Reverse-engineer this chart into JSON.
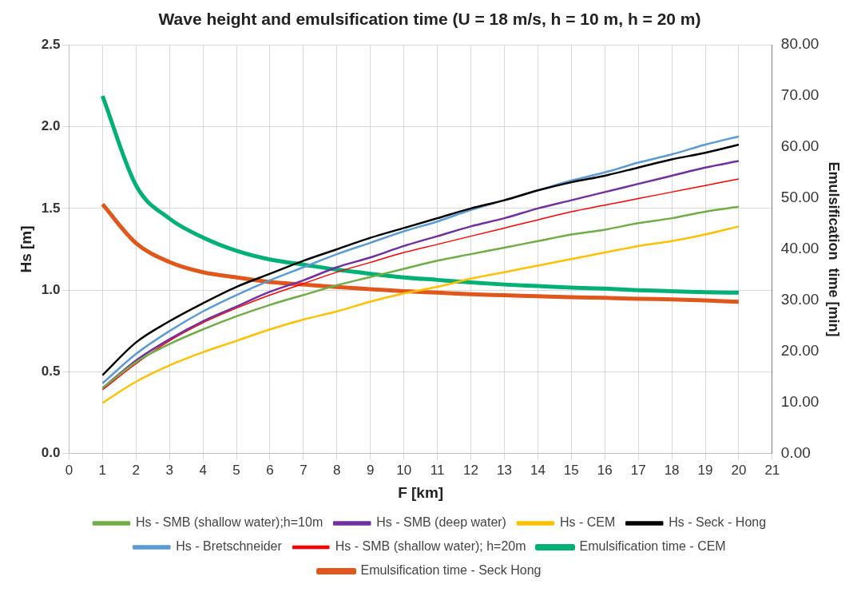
{
  "chart_data": {
    "type": "line",
    "title": "Wave height and emulsification time (U = 18 m/s, h = 10 m, h = 20 m)",
    "xlabel": "F [km]",
    "ylabel": "Hs [m]",
    "y2label": "Emulsification  time [min]",
    "x": [
      1,
      2,
      3,
      4,
      5,
      6,
      7,
      8,
      9,
      10,
      11,
      12,
      13,
      14,
      15,
      16,
      17,
      18,
      19,
      20
    ],
    "xlim": [
      0,
      21
    ],
    "xticks": [
      0,
      1,
      2,
      3,
      4,
      5,
      6,
      7,
      8,
      9,
      10,
      11,
      12,
      13,
      14,
      15,
      16,
      17,
      18,
      19,
      20,
      21
    ],
    "ylim": [
      0,
      2.5
    ],
    "yticks": [
      {
        "value": 0,
        "label": "0.0"
      },
      {
        "value": 0.5,
        "label": "0.5"
      },
      {
        "value": 1,
        "label": "1.0"
      },
      {
        "value": 1.5,
        "label": "1.5"
      },
      {
        "value": 2,
        "label": "2.0"
      },
      {
        "value": 2.5,
        "label": "2.5"
      }
    ],
    "y2lim": [
      0,
      80
    ],
    "y2ticks": [
      {
        "value": 0,
        "label": "0.00"
      },
      {
        "value": 10,
        "label": "10.00"
      },
      {
        "value": 20,
        "label": "20.00"
      },
      {
        "value": 30,
        "label": "30.00"
      },
      {
        "value": 40,
        "label": "40.00"
      },
      {
        "value": 50,
        "label": "50.00"
      },
      {
        "value": 60,
        "label": "60.00"
      },
      {
        "value": 70,
        "label": "70.00"
      },
      {
        "value": 80,
        "label": "80.00"
      }
    ],
    "grid": true,
    "legend": "bottom",
    "marker": "none",
    "series": [
      {
        "name": "Hs - SMB (shallow water);h=10m",
        "color": "#70ad47",
        "values": [
          0.4,
          0.56,
          0.67,
          0.76,
          0.84,
          0.91,
          0.97,
          1.03,
          1.08,
          1.13,
          1.18,
          1.22,
          1.26,
          1.3,
          1.34,
          1.37,
          1.41,
          1.44,
          1.48,
          1.51
        ]
      },
      {
        "name": "Hs - SMB (deep water)",
        "color": "#7030a0",
        "values": [
          0.4,
          0.57,
          0.7,
          0.81,
          0.9,
          0.99,
          1.06,
          1.14,
          1.2,
          1.27,
          1.33,
          1.39,
          1.44,
          1.5,
          1.55,
          1.6,
          1.65,
          1.7,
          1.75,
          1.79
        ]
      },
      {
        "name": "Hs - CEM",
        "color": "#ffc000",
        "values": [
          0.31,
          0.44,
          0.54,
          0.62,
          0.69,
          0.76,
          0.82,
          0.87,
          0.93,
          0.98,
          1.02,
          1.07,
          1.11,
          1.15,
          1.19,
          1.23,
          1.27,
          1.3,
          1.34,
          1.39
        ]
      },
      {
        "name": "Hs - Seck - Hong",
        "color": "#000000",
        "values": [
          0.48,
          0.68,
          0.81,
          0.92,
          1.02,
          1.1,
          1.18,
          1.25,
          1.32,
          1.38,
          1.44,
          1.5,
          1.55,
          1.61,
          1.66,
          1.7,
          1.75,
          1.8,
          1.84,
          1.89
        ]
      },
      {
        "name": "Hs - Bretschneider",
        "color": "#5b9bd5",
        "values": [
          0.43,
          0.61,
          0.75,
          0.87,
          0.97,
          1.06,
          1.14,
          1.22,
          1.29,
          1.36,
          1.42,
          1.49,
          1.55,
          1.61,
          1.67,
          1.72,
          1.78,
          1.83,
          1.89,
          1.94
        ]
      },
      {
        "name": "Hs - SMB (shallow water); h=20m",
        "color": "#ff0000",
        "values": [
          0.39,
          0.55,
          0.69,
          0.8,
          0.89,
          0.97,
          1.04,
          1.11,
          1.17,
          1.23,
          1.28,
          1.33,
          1.38,
          1.43,
          1.48,
          1.52,
          1.56,
          1.6,
          1.64,
          1.68
        ]
      },
      {
        "name": "Emulsification time - CEM",
        "color": "#00b074",
        "axis": "y2",
        "values": [
          70,
          52.5,
          46,
          42.3,
          39.7,
          38,
          37,
          36,
          35.2,
          34.5,
          34,
          33.5,
          33.1,
          32.8,
          32.5,
          32.3,
          32,
          31.8,
          31.6,
          31.5
        ]
      },
      {
        "name": "Emulsification time - Seck Hong",
        "color": "#e0561b",
        "axis": "y2",
        "values": [
          48.8,
          41.2,
          37.5,
          35.5,
          34.5,
          33.6,
          33.1,
          32.6,
          32.2,
          31.8,
          31.5,
          31.2,
          31,
          30.8,
          30.6,
          30.5,
          30.3,
          30.2,
          30,
          29.7
        ]
      }
    ]
  }
}
